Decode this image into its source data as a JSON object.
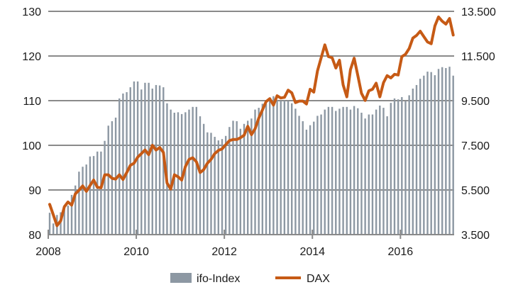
{
  "chart_data": {
    "type": "bar+line",
    "title": "",
    "x_start": "2008-01",
    "frequency": "monthly",
    "x_ticks": [
      "2008",
      "2010",
      "2012",
      "2014",
      "2016"
    ],
    "x_tick_years": [
      2008,
      2010,
      2012,
      2014,
      2016
    ],
    "left_axis": {
      "ylim": [
        80,
        130
      ],
      "ticks": [
        80,
        90,
        100,
        110,
        120,
        130
      ],
      "tick_labels": [
        "80",
        "90",
        "100",
        "110",
        "120",
        "130"
      ]
    },
    "right_axis": {
      "ylim": [
        3500,
        13500
      ],
      "ticks": [
        3500,
        5500,
        7500,
        9500,
        11500,
        13500
      ],
      "tick_labels": [
        "3.500",
        "5.500",
        "7.500",
        "9.500",
        "11.500",
        "13.500"
      ]
    },
    "grid": true,
    "legend": {
      "position": "bottom",
      "entries": [
        "ifo-Index",
        "DAX"
      ]
    },
    "series": [
      {
        "name": "ifo-Index",
        "kind": "bar",
        "axis": "left",
        "color": "#8d98a3",
        "values": [
          84.9,
          82.5,
          84.4,
          85,
          86,
          86.5,
          88.9,
          91,
          94.1,
          95.2,
          95.7,
          97.5,
          97.6,
          98.6,
          98.6,
          101,
          104.4,
          105.4,
          106.2,
          110.5,
          111.6,
          111.9,
          113,
          114.3,
          114.3,
          112.5,
          114,
          114,
          112.7,
          113.5,
          113.4,
          113,
          109.4,
          108,
          107.3,
          107.4,
          107,
          107.4,
          108,
          108.6,
          108.6,
          106.5,
          104.8,
          102.9,
          102.8,
          101.9,
          101.1,
          101.4,
          102.1,
          104.1,
          105.5,
          105.4,
          103.7,
          104.8,
          105.5,
          106,
          108,
          108.4,
          109.3,
          109.3,
          110,
          111,
          110,
          109.9,
          110,
          109.9,
          109.4,
          108.2,
          106.6,
          105.4,
          103.5,
          104.5,
          105.3,
          106.6,
          106.9,
          108,
          108.6,
          108.6,
          107.7,
          108.2,
          108.6,
          108.6,
          108,
          108.8,
          108.3,
          107.3,
          106,
          106.9,
          106.9,
          108,
          108.9,
          108.4,
          106.5,
          109.5,
          110.5,
          110.3,
          110.8,
          109.9,
          111.2,
          112.7,
          113.5,
          114.9,
          115.6,
          116.5,
          116.4,
          115.7,
          117.1,
          117.5,
          117.3,
          117.6,
          115.6
        ]
      },
      {
        "name": "DAX",
        "kind": "line",
        "axis": "right",
        "color": "#c65a15",
        "values": [
          4856,
          4380,
          3900,
          4115,
          4750,
          4960,
          4820,
          5330,
          5490,
          5680,
          5440,
          5700,
          5945,
          5620,
          5600,
          6180,
          6180,
          6020,
          5990,
          6180,
          5970,
          6280,
          6600,
          6700,
          6970,
          7130,
          7290,
          7080,
          7500,
          7290,
          7400,
          7180,
          5810,
          5540,
          6180,
          6090,
          5945,
          6550,
          6870,
          6940,
          6760,
          6280,
          6410,
          6700,
          6870,
          7130,
          7270,
          7340,
          7530,
          7710,
          7760,
          7760,
          7840,
          7950,
          8350,
          7980,
          8240,
          8720,
          9090,
          9460,
          9590,
          9300,
          9720,
          9620,
          9650,
          9970,
          9850,
          9410,
          9480,
          9480,
          9350,
          10010,
          9880,
          10830,
          11420,
          12000,
          11470,
          11420,
          10960,
          11310,
          10200,
          9670,
          10890,
          11400,
          10620,
          9830,
          9510,
          9940,
          10010,
          10280,
          9670,
          10310,
          10620,
          10520,
          10680,
          10650,
          11470,
          11580,
          11840,
          12300,
          12420,
          12610,
          12370,
          12130,
          12050,
          12850,
          13250,
          13060,
          12930,
          13180,
          12440
        ]
      }
    ]
  }
}
